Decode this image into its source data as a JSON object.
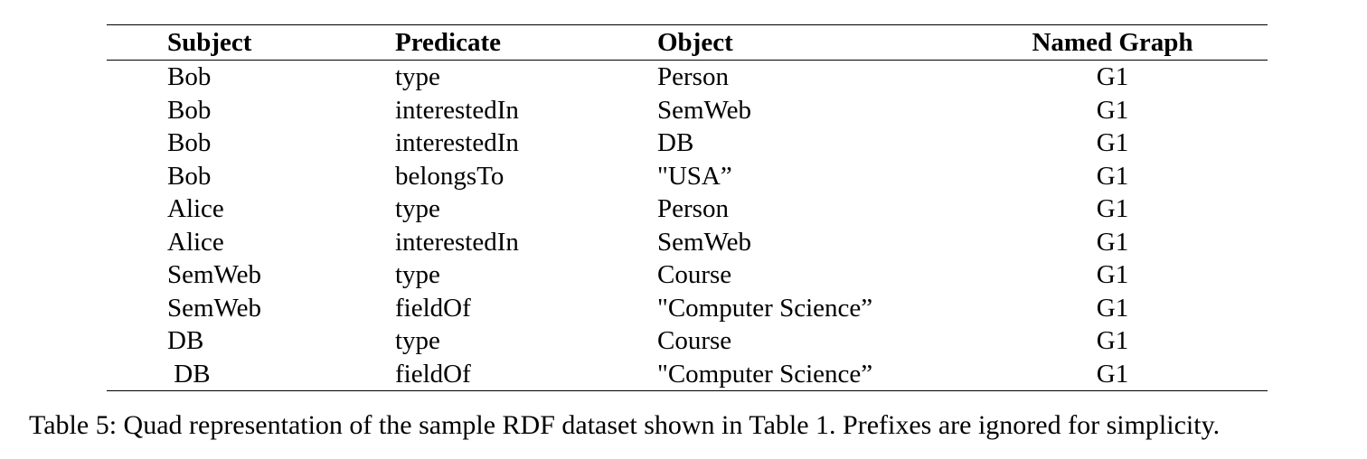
{
  "table": {
    "headers": {
      "subject": "Subject",
      "predicate": "Predicate",
      "object": "Object",
      "graph": "Named Graph"
    },
    "rows": [
      {
        "subject": "Bob",
        "predicate": "type",
        "object": "Person",
        "graph": "G1"
      },
      {
        "subject": "Bob",
        "predicate": "interestedIn",
        "object": "SemWeb",
        "graph": "G1"
      },
      {
        "subject": "Bob",
        "predicate": "interestedIn",
        "object": "DB",
        "graph": "G1"
      },
      {
        "subject": "Bob",
        "predicate": "belongsTo",
        "object": "\"USA”",
        "graph": "G1"
      },
      {
        "subject": "Alice",
        "predicate": "type",
        "object": "Person",
        "graph": "G1"
      },
      {
        "subject": "Alice",
        "predicate": "interestedIn",
        "object": "SemWeb",
        "graph": "G1"
      },
      {
        "subject": "SemWeb",
        "predicate": "type",
        "object": "Course",
        "graph": "G1"
      },
      {
        "subject": "SemWeb",
        "predicate": "fieldOf",
        "object": "\"Computer Science”",
        "graph": "G1"
      },
      {
        "subject": "DB",
        "predicate": "type",
        "object": "Course",
        "graph": "G1"
      },
      {
        "subject": " DB",
        "predicate": "fieldOf",
        "object": "\"Computer Science”",
        "graph": "G1"
      }
    ]
  },
  "caption": "Table 5: Quad representation of the sample RDF dataset shown in Table 1. Prefixes are ignored for simplicity."
}
